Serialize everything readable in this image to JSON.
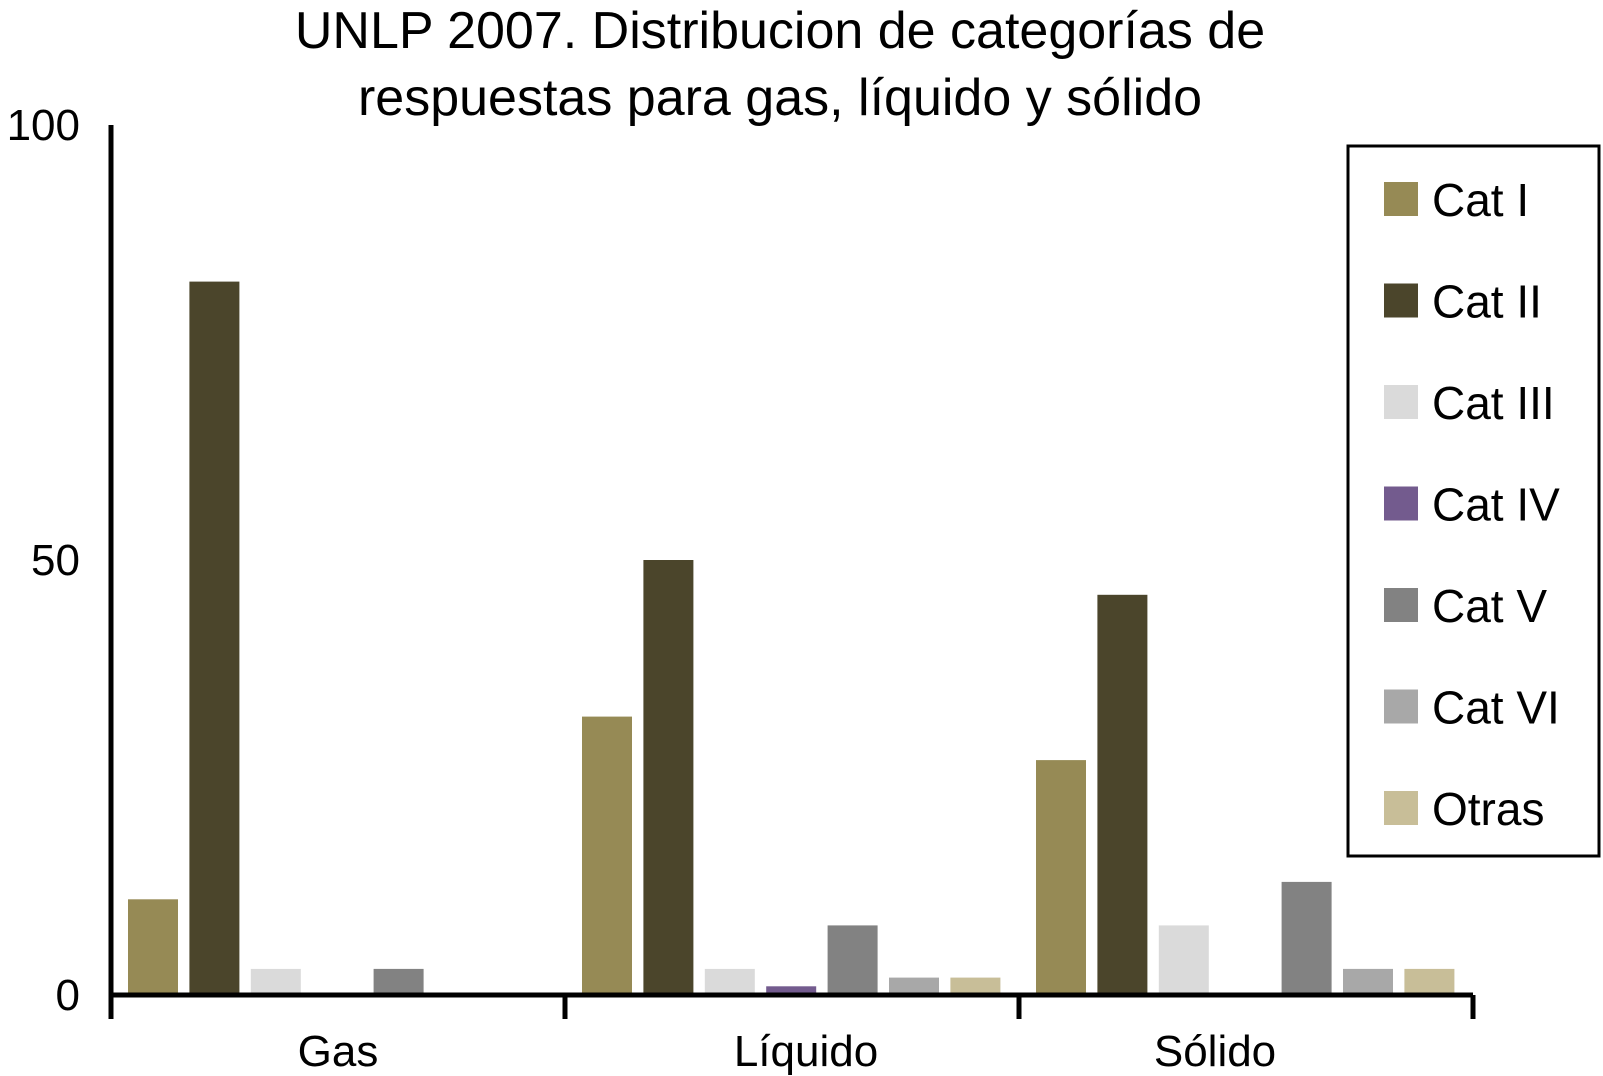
{
  "chart_data": {
    "type": "bar",
    "title_lines": [
      "UNLP 2007. Distribucion de categorías de",
      "respuestas para gas, líquido y sólido"
    ],
    "xlabel": "",
    "ylabel": "",
    "ylim": [
      0,
      100
    ],
    "yticks": [
      "0",
      "50",
      "100"
    ],
    "categories": [
      "Gas",
      "Líquido",
      "Sólido"
    ],
    "grid": false,
    "legend_position": "right",
    "series": [
      {
        "name": "Cat I",
        "color": "#968a55",
        "values": [
          11,
          32,
          27
        ]
      },
      {
        "name": "Cat II",
        "color": "#4b452b",
        "values": [
          82,
          50,
          46
        ]
      },
      {
        "name": "Cat III",
        "color": "#dadada",
        "values": [
          3,
          3,
          8
        ]
      },
      {
        "name": "Cat IV",
        "color": "#735b8e",
        "values": [
          0,
          1,
          0
        ]
      },
      {
        "name": "Cat V",
        "color": "#828282",
        "values": [
          3,
          8,
          13
        ]
      },
      {
        "name": "Cat VI",
        "color": "#a8a8a8",
        "values": [
          0,
          2,
          3
        ]
      },
      {
        "name": "Otras",
        "color": "#c8be98",
        "values": [
          0,
          2,
          3
        ]
      }
    ]
  }
}
